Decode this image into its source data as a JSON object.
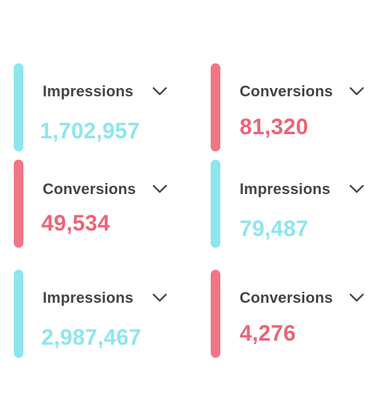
{
  "colors": {
    "impressions_accent": "#8de6ee",
    "conversions_accent": "#f07686",
    "label_text": "#444444"
  },
  "cards": [
    {
      "metric": "Impressions",
      "value": "1,702,957",
      "icon": "chevron-down-icon"
    },
    {
      "metric": "Conversions",
      "value": "81,320",
      "icon": "chevron-down-icon"
    },
    {
      "metric": "Conversions",
      "value": "49,534",
      "icon": "chevron-down-icon"
    },
    {
      "metric": "Impressions",
      "value": "79,487",
      "icon": "chevron-down-icon"
    },
    {
      "metric": "Impressions",
      "value": "2,987,467",
      "icon": "chevron-down-icon"
    },
    {
      "metric": "Conversions",
      "value": "4,276",
      "icon": "chevron-down-icon"
    }
  ]
}
